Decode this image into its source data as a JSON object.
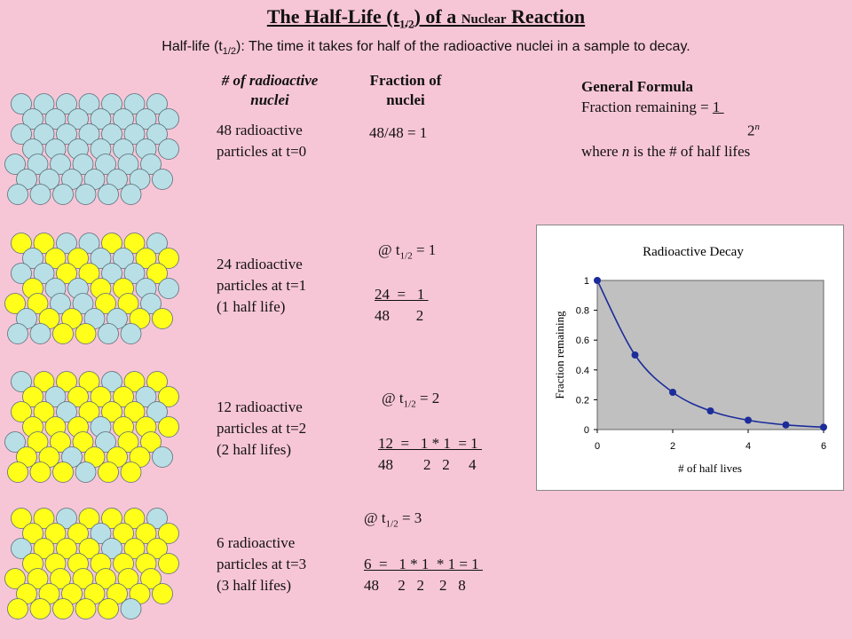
{
  "title": {
    "pre": "The Half-Life (t",
    "sub": "1/2",
    "mid": ") of a ",
    "small": "Nuclear",
    "post": " Reaction"
  },
  "definition": {
    "pre": "Half-life (t",
    "sub": "1/2",
    "post": "):  The time it takes for half of the radioactive nuclei in a sample to decay."
  },
  "column_headers": {
    "nuclei_line1": "# of radioactive",
    "nuclei_line2": "nuclei",
    "fraction_line1": "Fraction of",
    "fraction_line2": "nuclei"
  },
  "formula": {
    "title": "General Formula",
    "line1_pre": "Fraction remaining = ",
    "numerator": "1 ",
    "denominator": "2",
    "exponent": "n",
    "where_pre": "where ",
    "where_var": "n",
    "where_post": " is the # of half lifes"
  },
  "rows": [
    {
      "desc": [
        "48 radioactive",
        "particles at t=0"
      ],
      "fraction": "48/48 = 1",
      "decayed_fraction": 0
    },
    {
      "desc": [
        "24 radioactive",
        "particles at t=1",
        "(1 half life)"
      ],
      "header_pre": "@ t",
      "header_sub": "1/2",
      "header_post": " = 1",
      "eq_top": "24  =   1 ",
      "eq_bottom": "48       2",
      "decayed_fraction": 0.5
    },
    {
      "desc": [
        "12 radioactive",
        "particles at t=2",
        "(2 half lifes)"
      ],
      "header_pre": "@ t",
      "header_sub": "1/2",
      "header_post": " = 2",
      "eq_top": "12  =   1 * 1  = 1 ",
      "eq_bottom": "48        2   2     4",
      "decayed_fraction": 0.75
    },
    {
      "desc": [
        "6 radioactive",
        "particles at t=3",
        "(3 half lifes)"
      ],
      "header_pre": "@ t",
      "header_sub": "1/2",
      "header_post": " = 3",
      "eq_top": "6  =   1 * 1  * 1 = 1 ",
      "eq_bottom": "48     2   2    2   8",
      "decayed_fraction": 0.875
    }
  ],
  "colors": {
    "background": "#f7c6d6",
    "undecayed": "#b8dfe6",
    "decayed": "#ffff1a",
    "series": "#1c2c9a",
    "plot_area": "#c0c0c0"
  },
  "chart_data": {
    "type": "line",
    "title": "Radioactive Decay",
    "xlabel": "# of half lives",
    "ylabel": "Fraction remaining",
    "x": [
      0,
      1,
      2,
      3,
      4,
      5,
      6
    ],
    "y": [
      1,
      0.5,
      0.25,
      0.125,
      0.0625,
      0.03125,
      0.015625
    ],
    "xlim": [
      0,
      6
    ],
    "ylim": [
      0,
      1
    ],
    "xticks": [
      "0",
      "2",
      "4",
      "6"
    ],
    "yticks": [
      "0",
      "0.2",
      "0.4",
      "0.6",
      "0.8",
      "1"
    ],
    "grid": false,
    "legend": "none",
    "smooth": true,
    "markers": true
  }
}
